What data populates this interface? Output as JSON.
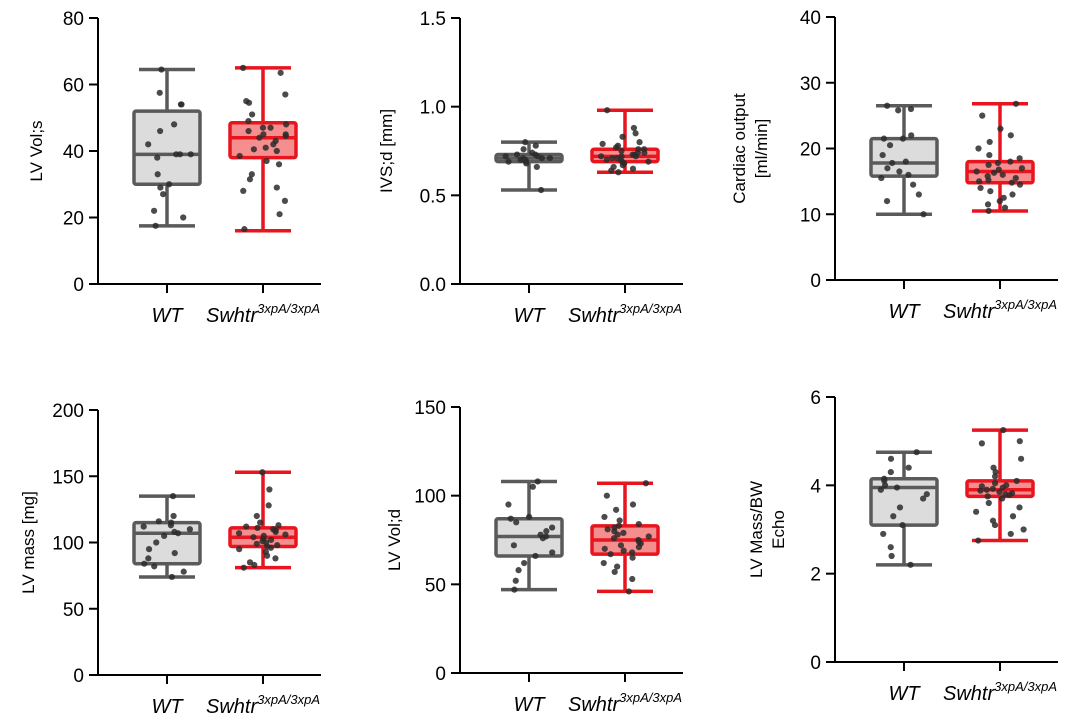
{
  "chart_data": [
    {
      "type": "box",
      "ylabel_lines": [
        "LV  Vol;s"
      ],
      "ylim": [
        0,
        80
      ],
      "yticks": [
        "0",
        "20",
        "40",
        "60",
        "80"
      ],
      "categories": [
        {
          "name": "WT",
          "sup": ""
        },
        {
          "name": "Swhtr",
          "sup": "3xpA/3xpA"
        }
      ],
      "groups": [
        {
          "min": 17.5,
          "q1": 30,
          "median": 39,
          "q3": 52,
          "max": 64.5,
          "points": [
            64.5,
            57.5,
            54,
            54,
            48,
            46,
            42,
            39,
            39,
            39,
            38,
            33,
            30,
            29,
            27,
            22,
            20,
            17.5
          ]
        },
        {
          "min": 16,
          "q1": 38,
          "median": 44,
          "q3": 48.5,
          "max": 65,
          "points": [
            65,
            63.5,
            57,
            55,
            54.5,
            51,
            49,
            48,
            47,
            47,
            46,
            45,
            45,
            44.5,
            44,
            43,
            42,
            41,
            40.5,
            40,
            38.5,
            37,
            36,
            33,
            31.5,
            29,
            28,
            25,
            21,
            16.5
          ]
        }
      ],
      "colors": [
        "#5a5a5a",
        "#e8141e"
      ]
    },
    {
      "type": "box",
      "ylabel_lines": [
        "IVS;d [mm]"
      ],
      "ylim": [
        0,
        1.5
      ],
      "yticks": [
        "0.0",
        "0.5",
        "1.0",
        "1.5"
      ],
      "categories": [
        {
          "name": "WT",
          "sup": ""
        },
        {
          "name": "Swhtr",
          "sup": "3xpA/3xpA"
        }
      ],
      "groups": [
        {
          "min": 0.53,
          "q1": 0.69,
          "median": 0.71,
          "q3": 0.73,
          "max": 0.8,
          "points": [
            0.8,
            0.78,
            0.76,
            0.74,
            0.73,
            0.73,
            0.72,
            0.72,
            0.71,
            0.71,
            0.71,
            0.7,
            0.7,
            0.69,
            0.69,
            0.68,
            0.66,
            0.53
          ]
        },
        {
          "min": 0.63,
          "q1": 0.69,
          "median": 0.72,
          "q3": 0.76,
          "max": 0.98,
          "points": [
            0.98,
            0.88,
            0.85,
            0.83,
            0.8,
            0.79,
            0.78,
            0.77,
            0.76,
            0.76,
            0.75,
            0.74,
            0.74,
            0.73,
            0.73,
            0.72,
            0.72,
            0.72,
            0.71,
            0.71,
            0.7,
            0.7,
            0.69,
            0.69,
            0.68,
            0.67,
            0.66,
            0.65,
            0.64,
            0.63
          ]
        }
      ],
      "colors": [
        "#5a5a5a",
        "#e8141e"
      ]
    },
    {
      "type": "box",
      "ylabel_lines": [
        "Cardiac output",
        "[ml/min]"
      ],
      "ylim": [
        0,
        40
      ],
      "yticks": [
        "0",
        "10",
        "20",
        "30",
        "40"
      ],
      "categories": [
        {
          "name": "WT",
          "sup": ""
        },
        {
          "name": "Swhtr",
          "sup": "3xpA/3xpA"
        }
      ],
      "groups": [
        {
          "min": 10,
          "q1": 15.8,
          "median": 17.8,
          "q3": 21.5,
          "max": 26.5,
          "points": [
            26.5,
            26,
            25.8,
            22,
            21.5,
            21.5,
            20.5,
            19,
            18,
            17.8,
            17,
            16.5,
            16,
            15.5,
            14.5,
            13,
            12,
            10
          ]
        },
        {
          "min": 10.5,
          "q1": 14.8,
          "median": 16.5,
          "q3": 18,
          "max": 26.8,
          "points": [
            26.8,
            25,
            23,
            22,
            21,
            20,
            19,
            18.5,
            18,
            17.8,
            17.5,
            17,
            16.8,
            16.5,
            16.3,
            16,
            15.8,
            15.5,
            15.2,
            15,
            14.8,
            14.5,
            14,
            13.5,
            13,
            12.5,
            12,
            11.5,
            11,
            10.5
          ]
        }
      ],
      "colors": [
        "#5a5a5a",
        "#e8141e"
      ]
    },
    {
      "type": "box",
      "ylabel_lines": [
        "LV mass [mg]"
      ],
      "ylim": [
        0,
        200
      ],
      "yticks": [
        "0",
        "50",
        "100",
        "150",
        "200"
      ],
      "categories": [
        {
          "name": "WT",
          "sup": ""
        },
        {
          "name": "Swhtr",
          "sup": "3xpA/3xpA"
        }
      ],
      "groups": [
        {
          "min": 74,
          "q1": 84,
          "median": 107,
          "q3": 115,
          "max": 135,
          "points": [
            135,
            120,
            116,
            115,
            113,
            112,
            110,
            108,
            107,
            105,
            100,
            95,
            92,
            88,
            84,
            82,
            78,
            74
          ]
        },
        {
          "min": 81,
          "q1": 97,
          "median": 104,
          "q3": 111,
          "max": 153,
          "points": [
            153,
            140,
            128,
            120,
            115,
            113,
            112,
            111,
            110,
            109,
            108,
            107,
            106,
            105,
            104,
            103,
            102,
            101,
            100,
            99,
            98,
            97,
            96,
            95,
            93,
            90,
            88,
            85,
            83,
            81
          ]
        }
      ],
      "colors": [
        "#5a5a5a",
        "#e8141e"
      ]
    },
    {
      "type": "box",
      "ylabel_lines": [
        "LV Vol;d"
      ],
      "ylim": [
        0,
        150
      ],
      "yticks": [
        "0",
        "50",
        "100",
        "150"
      ],
      "categories": [
        {
          "name": "WT",
          "sup": ""
        },
        {
          "name": "Swhtr",
          "sup": "3xpA/3xpA"
        }
      ],
      "groups": [
        {
          "min": 47,
          "q1": 66,
          "median": 77,
          "q3": 87,
          "max": 108,
          "points": [
            108,
            105,
            95,
            88,
            87,
            85,
            82,
            80,
            78,
            77,
            76,
            72,
            68,
            66,
            62,
            58,
            52,
            47
          ]
        },
        {
          "min": 46,
          "q1": 67,
          "median": 75,
          "q3": 83,
          "max": 107,
          "points": [
            107,
            100,
            95,
            92,
            88,
            86,
            84,
            83,
            82,
            81,
            80,
            79,
            78,
            77,
            76,
            75,
            74,
            73,
            72,
            71,
            70,
            69,
            68,
            67,
            65,
            62,
            60,
            57,
            53,
            46
          ]
        }
      ],
      "colors": [
        "#5a5a5a",
        "#e8141e"
      ]
    },
    {
      "type": "box",
      "ylabel_lines": [
        "LV Mass/BW",
        "Echo"
      ],
      "ylim": [
        0,
        6
      ],
      "yticks": [
        "0",
        "2",
        "4",
        "6"
      ],
      "categories": [
        {
          "name": "WT",
          "sup": ""
        },
        {
          "name": "Swhtr",
          "sup": "3xpA/3xpA"
        }
      ],
      "groups": [
        {
          "min": 2.2,
          "q1": 3.1,
          "median": 3.95,
          "q3": 4.15,
          "max": 4.75,
          "points": [
            4.75,
            4.6,
            4.4,
            4.3,
            4.15,
            4.1,
            4.0,
            3.95,
            3.9,
            3.8,
            3.7,
            3.5,
            3.3,
            3.1,
            2.9,
            2.6,
            2.4,
            2.2
          ]
        },
        {
          "min": 2.75,
          "q1": 3.75,
          "median": 3.9,
          "q3": 4.1,
          "max": 5.25,
          "points": [
            5.25,
            5.0,
            4.95,
            4.6,
            4.4,
            4.3,
            4.2,
            4.1,
            4.05,
            4.0,
            3.98,
            3.95,
            3.92,
            3.9,
            3.88,
            3.85,
            3.82,
            3.8,
            3.78,
            3.75,
            3.7,
            3.6,
            3.5,
            3.4,
            3.3,
            3.2,
            3.1,
            3.0,
            2.9,
            2.75
          ]
        }
      ],
      "colors": [
        "#5a5a5a",
        "#e8141e"
      ]
    }
  ]
}
